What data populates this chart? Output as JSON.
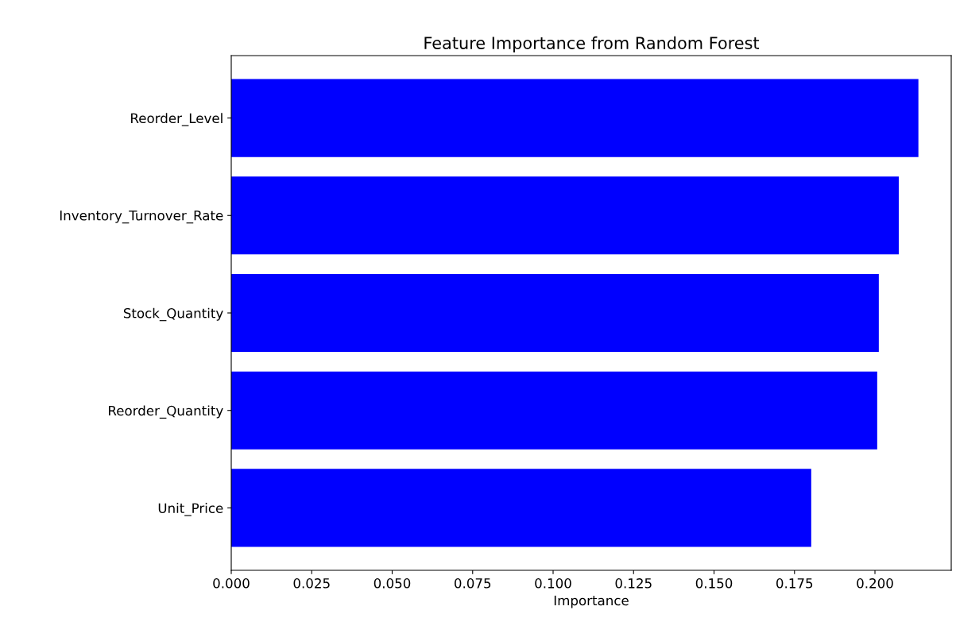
{
  "chart_data": {
    "type": "bar",
    "orientation": "horizontal",
    "title": "Feature Importance from Random Forest",
    "xlabel": "Importance",
    "categories": [
      "Reorder_Level",
      "Inventory_Turnover_Rate",
      "Stock_Quantity",
      "Reorder_Quantity",
      "Unit_Price"
    ],
    "values": [
      0.2135,
      0.2074,
      0.2012,
      0.2007,
      0.1802
    ],
    "color": "#0000ff",
    "xlim": [
      0,
      0.2237
    ],
    "xticks": [
      {
        "value": 0,
        "label": "0.000"
      },
      {
        "value": 0.025,
        "label": "0.025"
      },
      {
        "value": 0.05,
        "label": "0.050"
      },
      {
        "value": 0.075,
        "label": "0.075"
      },
      {
        "value": 0.1,
        "label": "0.100"
      },
      {
        "value": 0.125,
        "label": "0.125"
      },
      {
        "value": 0.15,
        "label": "0.150"
      },
      {
        "value": 0.175,
        "label": "0.175"
      },
      {
        "value": 0.2,
        "label": "0.200"
      }
    ],
    "grid": false
  }
}
